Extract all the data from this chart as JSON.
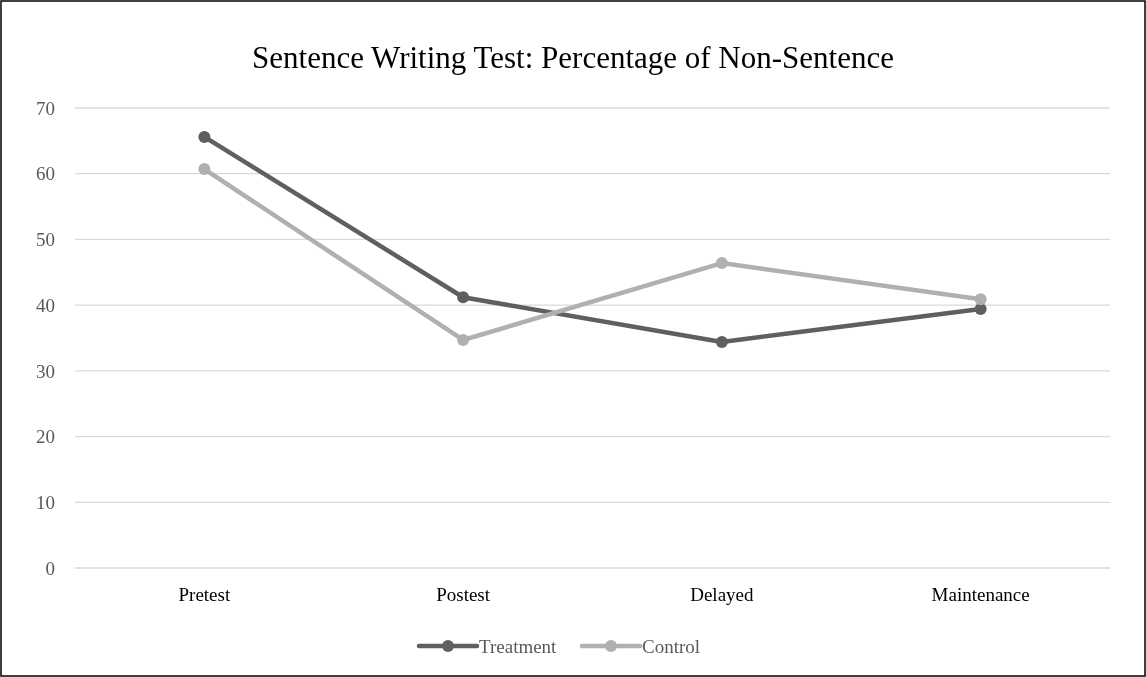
{
  "chart_data": {
    "type": "line",
    "title": "Sentence Writing Test: Percentage of Non-Sentence",
    "categories": [
      "Pretest",
      "Postest",
      "Delayed",
      "Maintenance"
    ],
    "series": [
      {
        "name": "Treatment",
        "color": "#5f5f5f",
        "values": [
          65.6,
          41.2,
          34.4,
          39.4
        ]
      },
      {
        "name": "Control",
        "color": "#b0b0b0",
        "values": [
          60.7,
          34.7,
          46.4,
          40.9
        ]
      }
    ],
    "ylim": [
      0,
      70
    ],
    "yticks": [
      0,
      10,
      20,
      30,
      40,
      50,
      60,
      70
    ],
    "grid": "y",
    "legend": "bottom",
    "marker": "circle",
    "line_style": "solid"
  }
}
